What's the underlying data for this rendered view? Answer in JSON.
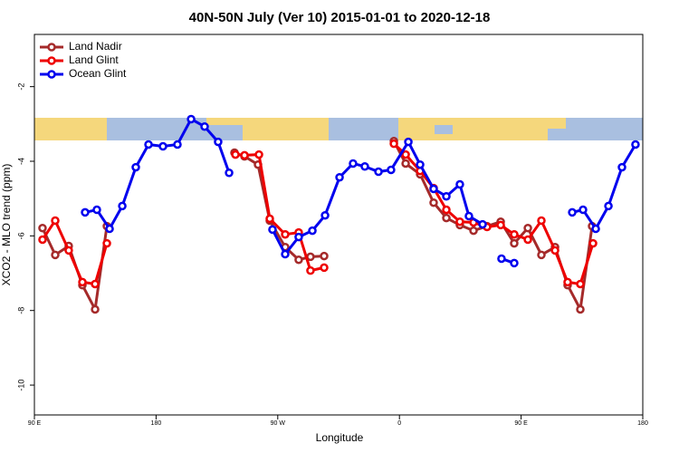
{
  "chart_data": {
    "type": "line",
    "title": "40N-50N July (Ver 10)   2015-01-01 to 2020-12-18",
    "x_label": "Longitude",
    "y_label": "XCO2 - MLO trend (ppm)",
    "xlim": [
      90,
      540
    ],
    "ylim": [
      -10.8,
      -0.6
    ],
    "xticks": [
      {
        "value": 90,
        "label": "90 E"
      },
      180,
      {
        "value": 270,
        "label": "90 W"
      },
      {
        "value": 360,
        "label": "0"
      },
      {
        "value": 450,
        "label": "90 E"
      },
      {
        "value": 540,
        "label": "180"
      }
    ],
    "yticks": [
      -10,
      -8,
      -6,
      -4,
      -2
    ],
    "legend": "top-left",
    "series": [
      {
        "name": "Land Nadir",
        "color": "#a52a2a",
        "x": [
          96,
          105.4,
          115.4,
          125.5,
          134.9,
          143.6,
          null,
          238,
          245.4,
          255.4,
          264.1,
          275.5,
          285.5,
          294.2,
          304.3,
          null,
          355.9,
          364.6,
          375.3,
          385.3,
          394.7,
          404.7,
          414.8,
          424.8,
          434.9,
          444.9,
          455,
          465,
          475.1,
          484.4,
          493.8,
          502.5
        ],
        "values": [
          -5.79,
          -6.51,
          -6.27,
          -7.32,
          -7.97,
          -5.74,
          null,
          -3.77,
          -3.87,
          -4.09,
          -5.59,
          -6.3,
          -6.64,
          -6.56,
          -6.54,
          null,
          -3.46,
          -4.06,
          -4.35,
          -5.11,
          -5.52,
          -5.71,
          -5.86,
          -5.74,
          -5.62,
          -6.2,
          -5.79,
          -6.51,
          -6.3,
          -7.32,
          -7.97,
          -5.74
        ]
      },
      {
        "name": "Land Glint",
        "color": "#ee0000",
        "x": [
          96,
          105.4,
          115.4,
          125.5,
          134.9,
          143.6,
          null,
          238.7,
          245.4,
          256.1,
          264.1,
          275.5,
          285.5,
          294.2,
          304.3,
          null,
          355.9,
          364.6,
          375.3,
          385.3,
          394.7,
          404.7,
          414.8,
          424.8,
          434.9,
          444.9,
          455,
          465,
          475.1,
          484.4,
          493.8,
          503.2
        ],
        "values": [
          -6.1,
          -5.59,
          -6.39,
          -7.24,
          -7.29,
          -6.2,
          null,
          -3.82,
          -3.84,
          -3.82,
          -5.54,
          -5.96,
          -5.91,
          -6.93,
          -6.85,
          null,
          -3.53,
          -3.82,
          -4.26,
          -4.72,
          -5.3,
          -5.62,
          -5.64,
          -5.76,
          -5.71,
          -5.96,
          -6.1,
          -5.59,
          -6.39,
          -7.24,
          -7.29,
          -6.2
        ]
      },
      {
        "name": "Ocean Glint",
        "color": "#0000ee",
        "x": [
          127.5,
          136.2,
          145.6,
          155,
          165,
          174.4,
          185.1,
          195.8,
          205.9,
          215.9,
          225.9,
          234,
          null,
          266.1,
          275.5,
          285.5,
          295.6,
          305,
          315.7,
          325.7,
          334.4,
          344.5,
          353.8,
          366.6,
          375.3,
          385.3,
          394.7,
          404.7,
          411.4,
          421.5,
          null,
          435.5,
          444.9,
          null,
          487.8,
          495.8,
          505.2,
          514.6,
          524.6,
          534.6
        ],
        "values": [
          -5.37,
          -5.3,
          -5.81,
          -5.2,
          -4.16,
          -3.55,
          -3.6,
          -3.55,
          -2.87,
          -3.07,
          -3.48,
          -4.31,
          null,
          -5.83,
          -6.49,
          -6.03,
          -5.86,
          -5.45,
          -4.43,
          -4.06,
          -4.14,
          -4.28,
          -4.23,
          -3.48,
          -4.09,
          -4.74,
          -4.94,
          -4.62,
          -5.47,
          -5.69,
          null,
          -6.61,
          -6.73,
          null,
          -5.37,
          -5.3,
          -5.81,
          -5.2,
          -4.16,
          -3.55
        ]
      }
    ]
  }
}
